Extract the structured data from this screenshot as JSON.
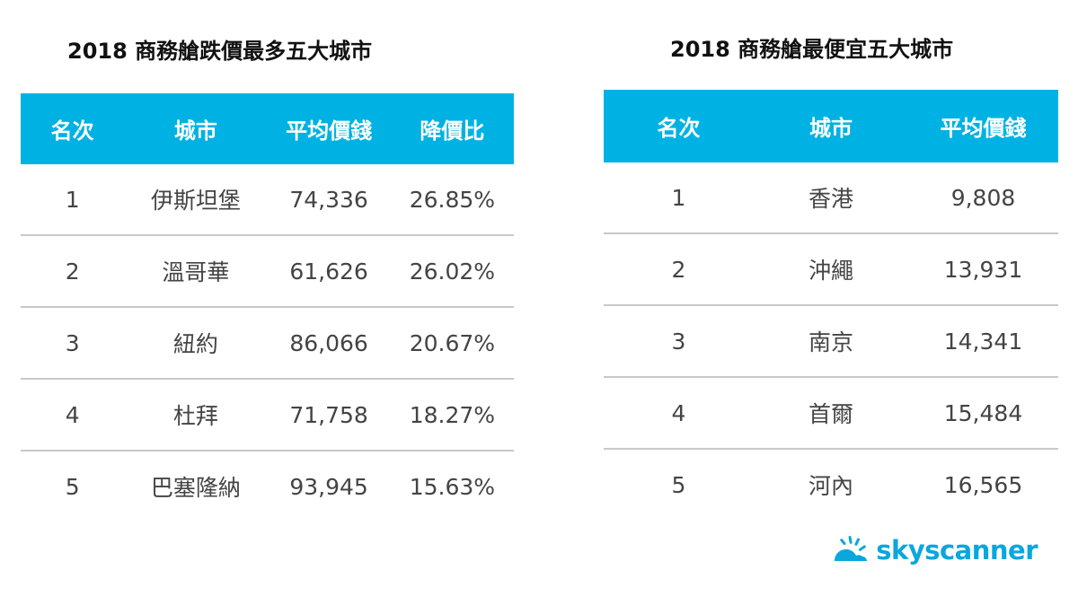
{
  "left_table": {
    "title": "2018 商務艙跌價最多五大城市",
    "headers": [
      "名次",
      "城市",
      "平均價錢",
      "降價比"
    ],
    "rows": [
      [
        "1",
        "伊斯坦堡",
        "74,336",
        "26.85%"
      ],
      [
        "2",
        "溫哥華",
        "61,626",
        "26.02%"
      ],
      [
        "3",
        "紐約",
        "86,066",
        "20.67%"
      ],
      [
        "4",
        "杜拜",
        "71,758",
        "18.27%"
      ],
      [
        "5",
        "巴塞隆納",
        "93,945",
        "15.63%"
      ]
    ]
  },
  "right_table": {
    "title": "2018 商務艙最便宜五大城市",
    "headers": [
      "名次",
      "城市",
      "平均價錢"
    ],
    "rows": [
      [
        "1",
        "香港",
        "9,808"
      ],
      [
        "2",
        "沖繩",
        "13,931"
      ],
      [
        "3",
        "南京",
        "14,341"
      ],
      [
        "4",
        "首爾",
        "15,484"
      ],
      [
        "5",
        "河內",
        "16,565"
      ]
    ]
  },
  "logo": {
    "text": "skyscanner",
    "icon": "cloud-sun-icon",
    "color": "#0aa7dd"
  },
  "colors": {
    "header_bg": "#00b2e3",
    "header_text": "#ffffff",
    "divider": "#c8c8c8"
  }
}
